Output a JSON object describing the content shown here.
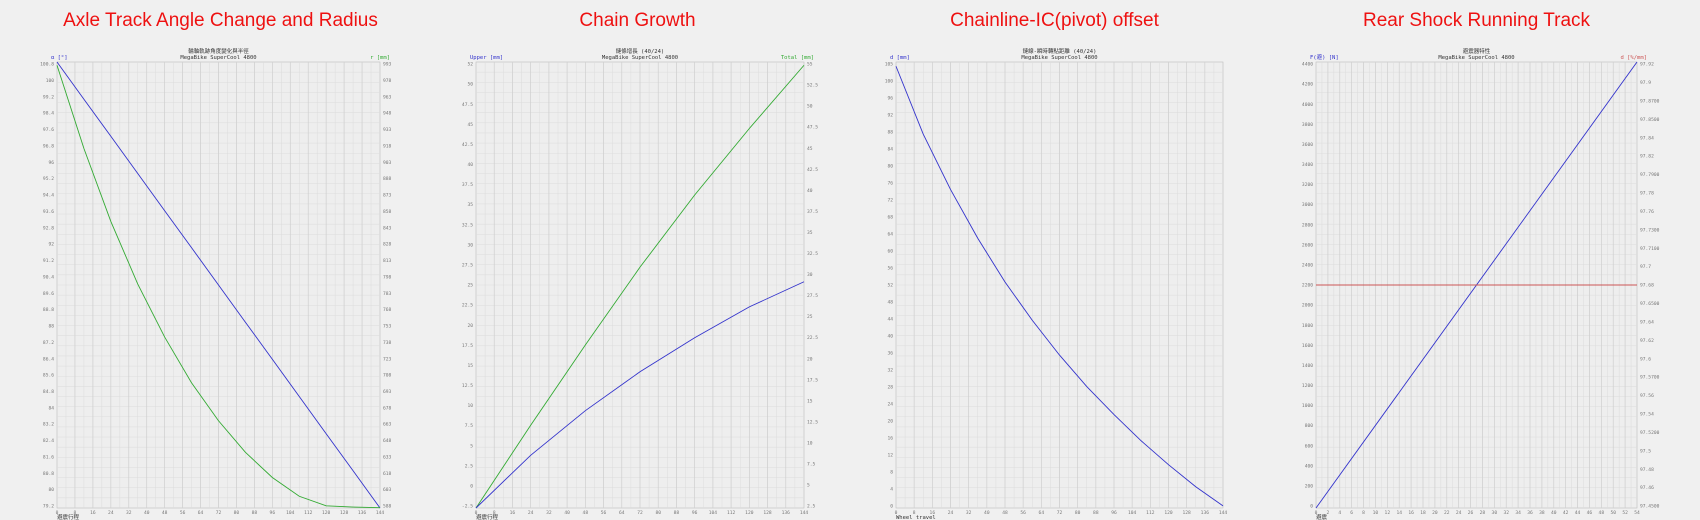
{
  "colors": {
    "title": "#ee1111",
    "blue": "#3333cc",
    "green": "#33aa33",
    "red": "#cc5555",
    "grid": "#cfcfcf"
  },
  "chart_data": [
    {
      "type": "line",
      "panel_title": "Axle Track Angle Change and Radius",
      "title": "輪軸軌跡角度變化與半徑",
      "subtitle": "MegaBike SuperCool 4800",
      "xlabel": "避震行程",
      "ylabel_left": "α [°]",
      "ylabel_right": "r [mm]",
      "xlim": [
        0,
        144
      ],
      "ylim_left": [
        78.8,
        101.2
      ],
      "ylim_right": [
        582,
        993
      ],
      "x_ticks": [
        "0",
        "8",
        "16",
        "24",
        "32",
        "40",
        "48",
        "56",
        "64",
        "72",
        "80",
        "88",
        "96",
        "104",
        "112",
        "120",
        "128",
        "136",
        "144"
      ],
      "y_ticks_left": [
        "100.8",
        "100",
        "99.2",
        "98.4",
        "97.6",
        "96.8",
        "96",
        "95.2",
        "94.4",
        "93.6",
        "92.8",
        "92",
        "91.2",
        "90.4",
        "89.6",
        "88.8",
        "88",
        "87.2",
        "86.4",
        "85.6",
        "84.8",
        "84",
        "83.2",
        "82.4",
        "81.6",
        "80.8",
        "80",
        "79.2"
      ],
      "y_ticks_right": [
        "993",
        "978",
        "963",
        "948",
        "933",
        "918",
        "903",
        "888",
        "873",
        "858",
        "843",
        "828",
        "813",
        "798",
        "783",
        "768",
        "753",
        "738",
        "723",
        "708",
        "693",
        "678",
        "663",
        "648",
        "633",
        "618",
        "603",
        "588"
      ],
      "series": [
        {
          "color": "#3333cc",
          "axis": "left",
          "x": [
            0,
            12,
            24,
            36,
            48,
            60,
            72,
            84,
            96,
            108,
            120,
            132,
            144
          ],
          "y": [
            101.2,
            99.33,
            97.47,
            95.6,
            93.73,
            91.87,
            90.0,
            88.13,
            86.27,
            84.4,
            82.53,
            80.67,
            78.8
          ]
        },
        {
          "color": "#33aa33",
          "axis": "right",
          "x": [
            0,
            12,
            24,
            36,
            48,
            60,
            72,
            84,
            96,
            108,
            120,
            132,
            144
          ],
          "y": [
            990,
            913.3,
            846.1,
            788.4,
            739.5,
            697.3,
            662.4,
            633.3,
            610.1,
            592.8,
            584.0,
            582.9,
            582.3
          ]
        }
      ]
    },
    {
      "type": "line",
      "panel_title": "Chain Growth",
      "title": "鏈條增長 (40/24)",
      "subtitle": "MegaBike SuperCool 4800",
      "xlabel": "避震行程",
      "ylabel_left": "Upper [mm]",
      "ylabel_right": "Total [mm]",
      "xlim": [
        0,
        144
      ],
      "ylim_left": [
        -2.5,
        52.5
      ],
      "ylim_right": [
        0,
        55
      ],
      "x_ticks": [
        "0",
        "8",
        "16",
        "24",
        "32",
        "40",
        "48",
        "56",
        "64",
        "72",
        "80",
        "88",
        "96",
        "104",
        "112",
        "120",
        "128",
        "136",
        "144"
      ],
      "y_ticks_left": [
        "52",
        "50",
        "47.5",
        "45",
        "42.5",
        "40",
        "37.5",
        "35",
        "32.5",
        "30",
        "27.5",
        "25",
        "22.5",
        "20",
        "17.5",
        "15",
        "12.5",
        "10",
        "7.5",
        "5",
        "2.5",
        "0",
        "-2.5"
      ],
      "y_ticks_right": [
        "55",
        "52.5",
        "50",
        "47.5",
        "45",
        "42.5",
        "40",
        "37.5",
        "35",
        "32.5",
        "30",
        "27.5",
        "25",
        "22.5",
        "20",
        "17.5",
        "15",
        "12.5",
        "10",
        "7.5",
        "5",
        "2.5"
      ],
      "series": [
        {
          "color": "#33aa33",
          "axis": "right",
          "x": [
            0,
            24,
            48,
            72,
            96,
            120,
            144
          ],
          "y": [
            0,
            10.2,
            20.1,
            29.7,
            38.6,
            46.8,
            54.6
          ]
        },
        {
          "color": "#3333cc",
          "axis": "right",
          "x": [
            0,
            24,
            48,
            72,
            96,
            120,
            144
          ],
          "y": [
            0,
            6.5,
            12.0,
            16.8,
            21.0,
            24.8,
            27.9
          ]
        }
      ]
    },
    {
      "type": "line",
      "panel_title": "Chainline-IC(pivot) offset",
      "title": "鏈線-瞬時轉點距離 (40/24)",
      "subtitle": "MegaBike SuperCool 4800",
      "xlabel": "Wheel travel",
      "ylabel_left": "d [mm]",
      "ylabel_right": "",
      "xlim": [
        0,
        144
      ],
      "ylim_left": [
        0,
        105
      ],
      "ylim_right": [],
      "x_ticks": [
        "0",
        "8",
        "16",
        "24",
        "32",
        "40",
        "48",
        "56",
        "64",
        "72",
        "80",
        "88",
        "96",
        "104",
        "112",
        "120",
        "128",
        "136",
        "144"
      ],
      "y_ticks_left": [
        "105",
        "100",
        "96",
        "92",
        "88",
        "84",
        "80",
        "76",
        "72",
        "68",
        "64",
        "60",
        "56",
        "52",
        "48",
        "44",
        "40",
        "36",
        "32",
        "28",
        "24",
        "20",
        "16",
        "12",
        "8",
        "4",
        "0"
      ],
      "y_ticks_right": [],
      "series": [
        {
          "color": "#3333cc",
          "axis": "left",
          "x": [
            0,
            12,
            24,
            36,
            48,
            60,
            72,
            84,
            96,
            108,
            120,
            132,
            144
          ],
          "y": [
            104,
            88,
            75,
            63.5,
            53.2,
            44.2,
            36.0,
            28.6,
            22.0,
            15.8,
            10.2,
            5.0,
            0.5
          ]
        }
      ]
    },
    {
      "type": "line",
      "panel_title": "Rear Shock Running Track",
      "title": "避震器特性",
      "subtitle": "MegaBike SuperCool 4800",
      "xlabel": "避震",
      "ylabel_left": "F(避) [N]",
      "ylabel_right": "d [%/mm]",
      "xlim": [
        0,
        54
      ],
      "ylim_left": [
        0,
        4500
      ],
      "ylim_right": [
        96.95,
        97.95
      ],
      "x_ticks": [
        "0",
        "2",
        "4",
        "6",
        "8",
        "10",
        "12",
        "14",
        "16",
        "18",
        "20",
        "22",
        "24",
        "26",
        "28",
        "30",
        "32",
        "34",
        "36",
        "38",
        "40",
        "42",
        "44",
        "46",
        "48",
        "50",
        "52",
        "54"
      ],
      "y_ticks_left": [
        "4400",
        "4200",
        "4000",
        "3800",
        "3600",
        "3400",
        "3200",
        "3000",
        "2800",
        "2600",
        "2400",
        "2200",
        "2000",
        "1800",
        "1600",
        "1400",
        "1200",
        "1000",
        "800",
        "600",
        "400",
        "200",
        "0"
      ],
      "y_ticks_right": [
        "97.92",
        "97.9",
        "97.8700",
        "97.8500",
        "97.84",
        "97.82",
        "97.7900",
        "97.78",
        "97.76",
        "97.7300",
        "97.7100",
        "97.7",
        "97.68",
        "97.6500",
        "97.64",
        "97.62",
        "97.6",
        "97.5700",
        "97.56",
        "97.54",
        "97.5200",
        "97.5",
        "97.48",
        "97.46",
        "97.4500"
      ],
      "series": [
        {
          "color": "#3333cc",
          "axis": "left",
          "x": [
            0,
            54
          ],
          "y": [
            0,
            4500
          ]
        },
        {
          "color": "#cc5555",
          "axis": "left",
          "x": [
            0,
            54
          ],
          "y": [
            2250,
            2250
          ]
        }
      ]
    }
  ]
}
